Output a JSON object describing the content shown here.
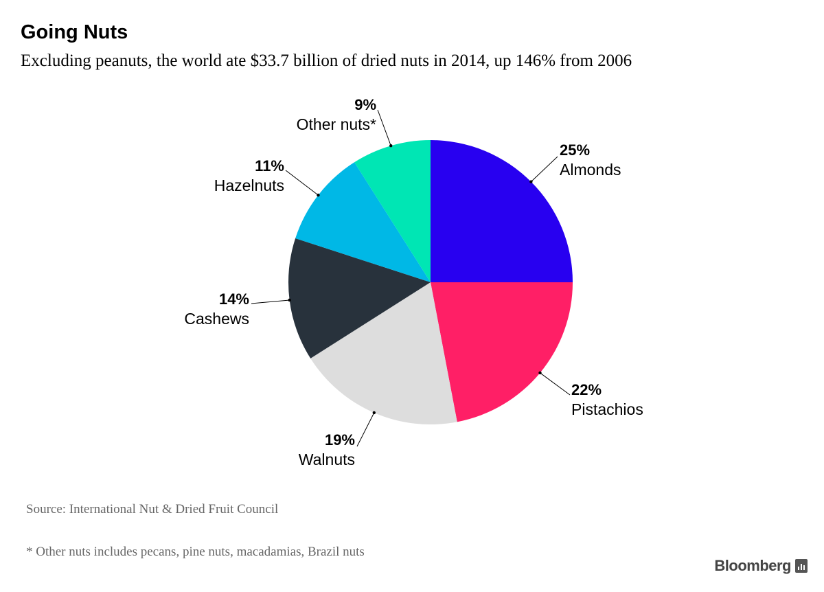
{
  "title": "Going Nuts",
  "subtitle": "Excluding peanuts, the world ate $33.7 billion of dried nuts in 2014, up 146% from 2006",
  "source": "Source: International Nut & Dried Fruit Council",
  "footnote": "* Other nuts includes pecans, pine nuts, macadamias, Brazil nuts",
  "brand": "Bloomberg",
  "brand_icon": "bar-chart-icon",
  "chart_data": {
    "type": "pie",
    "slices": [
      {
        "name": "Almonds",
        "value": 25,
        "label": "25%",
        "color": "#2800f0"
      },
      {
        "name": "Pistachios",
        "value": 22,
        "label": "22%",
        "color": "#ff1f66"
      },
      {
        "name": "Walnuts",
        "value": 19,
        "label": "19%",
        "color": "#dddddd"
      },
      {
        "name": "Cashews",
        "value": 14,
        "label": "14%",
        "color": "#28323c"
      },
      {
        "name": "Hazelnuts",
        "value": 11,
        "label": "11%",
        "color": "#00b8e6"
      },
      {
        "name": "Other nuts*",
        "value": 9,
        "label": "9%",
        "color": "#00e6b4"
      }
    ],
    "start": "12 o'clock",
    "direction": "clockwise"
  }
}
